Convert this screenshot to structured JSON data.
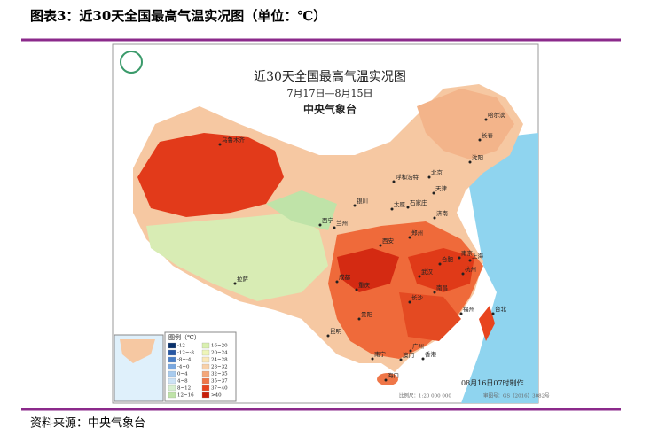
{
  "header": {
    "title": "图表3：近30天全国最高气温实况图（单位：℃）"
  },
  "map": {
    "title": "近30天全国最高气温实况图",
    "date_range": "7月17日—8月15日",
    "issuer": "中央气象台",
    "cities": [
      "乌鲁木齐",
      "哈尔滨",
      "长春",
      "沈阳",
      "北京",
      "天津",
      "呼和浩特",
      "石家庄",
      "太原",
      "银川",
      "西宁",
      "兰州",
      "济南",
      "郑州",
      "西安",
      "南京",
      "合肥",
      "上海",
      "杭州",
      "武汉",
      "成都",
      "重庆",
      "长沙",
      "南昌",
      "福州",
      "台北",
      "贵阳",
      "昆明",
      "拉萨",
      "南宁",
      "广州",
      "香港",
      "澳门",
      "海口"
    ],
    "legend": {
      "title": "图例（℃）",
      "items": [
        {
          "label": "-12",
          "color": "#08306b"
        },
        {
          "label": "-12~-8",
          "color": "#2757a4"
        },
        {
          "label": "-8~-4",
          "color": "#4a7fc8"
        },
        {
          "label": "-4~0",
          "color": "#7aa8e0"
        },
        {
          "label": "0~4",
          "color": "#a8cbee"
        },
        {
          "label": "4~8",
          "color": "#cde3f5"
        },
        {
          "label": "8~12",
          "color": "#d8efd0"
        },
        {
          "label": "12~16",
          "color": "#bfe3a8"
        },
        {
          "label": "16~20",
          "color": "#d9f0b0"
        },
        {
          "label": "20~24",
          "color": "#eef5b8"
        },
        {
          "label": "24~28",
          "color": "#fbe8b8"
        },
        {
          "label": "28~32",
          "color": "#f8d0a8"
        },
        {
          "label": "32~35",
          "color": "#f4a77a"
        },
        {
          "label": "35~37",
          "color": "#ef7648"
        },
        {
          "label": "37~40",
          "color": "#e8441e"
        },
        {
          "label": ">40",
          "color": "#c81e0a"
        }
      ]
    },
    "scale": "比例尺：1:20 000 000",
    "approval": "审图号：GS（2016）3082号",
    "made": "08月16日07时制作"
  },
  "footer": {
    "source": "资料来源：中央气象台"
  }
}
